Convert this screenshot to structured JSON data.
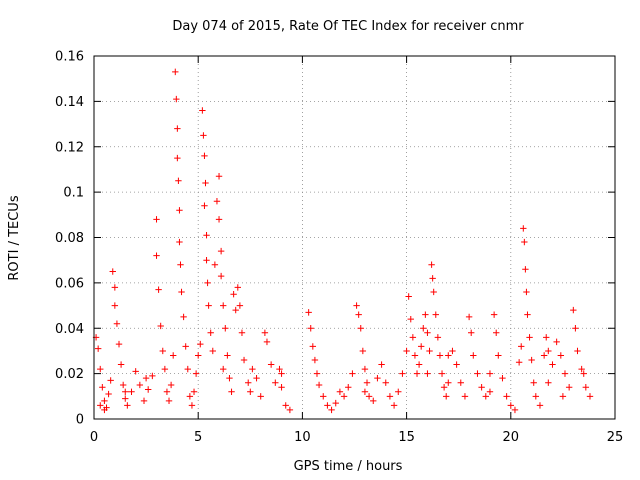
{
  "chart_data": {
    "type": "scatter",
    "title": "Day 074 of 2015, Rate Of TEC Index for receiver cnmr",
    "xlabel": "GPS time / hours",
    "ylabel": "ROTI / TECUs",
    "xlim": [
      0,
      25
    ],
    "ylim": [
      0,
      0.16
    ],
    "x_ticks": [
      0,
      5,
      10,
      15,
      20,
      25
    ],
    "x_tick_labels": [
      "0",
      "5",
      "10",
      "15",
      "20",
      "25"
    ],
    "y_ticks": [
      0,
      0.02,
      0.04,
      0.06,
      0.08,
      0.1,
      0.12,
      0.14,
      0.16
    ],
    "y_tick_labels": [
      "0",
      "0.02",
      "0.04",
      "0.06",
      "0.08",
      "0.1",
      "0.12",
      "0.14",
      "0.16"
    ],
    "grid": true,
    "marker": "+",
    "color": "#ff0000",
    "series": [
      {
        "name": "ROTI",
        "points": [
          [
            0.1,
            0.036
          ],
          [
            0.2,
            0.031
          ],
          [
            0.3,
            0.022
          ],
          [
            0.4,
            0.014
          ],
          [
            0.5,
            0.008
          ],
          [
            0.6,
            0.005
          ],
          [
            0.7,
            0.011
          ],
          [
            0.8,
            0.017
          ],
          [
            0.3,
            0.006
          ],
          [
            0.5,
            0.004
          ],
          [
            0.9,
            0.065
          ],
          [
            1.0,
            0.058
          ],
          [
            1.0,
            0.05
          ],
          [
            1.1,
            0.042
          ],
          [
            1.2,
            0.033
          ],
          [
            1.3,
            0.024
          ],
          [
            1.4,
            0.015
          ],
          [
            1.5,
            0.009
          ],
          [
            1.6,
            0.006
          ],
          [
            1.8,
            0.012
          ],
          [
            2.0,
            0.021
          ],
          [
            2.2,
            0.015
          ],
          [
            2.4,
            0.008
          ],
          [
            2.6,
            0.013
          ],
          [
            2.8,
            0.019
          ],
          [
            3.0,
            0.088
          ],
          [
            3.0,
            0.072
          ],
          [
            3.1,
            0.057
          ],
          [
            3.2,
            0.041
          ],
          [
            3.3,
            0.03
          ],
          [
            3.4,
            0.022
          ],
          [
            3.5,
            0.012
          ],
          [
            3.6,
            0.008
          ],
          [
            3.7,
            0.015
          ],
          [
            3.8,
            0.028
          ],
          [
            3.9,
            0.153
          ],
          [
            3.95,
            0.141
          ],
          [
            4.0,
            0.128
          ],
          [
            4.0,
            0.115
          ],
          [
            4.05,
            0.105
          ],
          [
            4.1,
            0.092
          ],
          [
            4.1,
            0.078
          ],
          [
            4.15,
            0.068
          ],
          [
            4.2,
            0.056
          ],
          [
            4.3,
            0.045
          ],
          [
            4.4,
            0.032
          ],
          [
            4.5,
            0.022
          ],
          [
            4.6,
            0.01
          ],
          [
            4.7,
            0.006
          ],
          [
            4.8,
            0.012
          ],
          [
            4.9,
            0.02
          ],
          [
            5.0,
            0.028
          ],
          [
            5.1,
            0.033
          ],
          [
            5.2,
            0.136
          ],
          [
            5.25,
            0.125
          ],
          [
            5.3,
            0.116
          ],
          [
            5.35,
            0.104
          ],
          [
            5.3,
            0.094
          ],
          [
            5.4,
            0.081
          ],
          [
            5.4,
            0.07
          ],
          [
            5.45,
            0.06
          ],
          [
            5.5,
            0.05
          ],
          [
            5.6,
            0.038
          ],
          [
            5.7,
            0.03
          ],
          [
            5.8,
            0.068
          ],
          [
            5.9,
            0.096
          ],
          [
            6.0,
            0.107
          ],
          [
            6.0,
            0.088
          ],
          [
            6.1,
            0.074
          ],
          [
            6.1,
            0.063
          ],
          [
            6.2,
            0.05
          ],
          [
            6.3,
            0.04
          ],
          [
            6.4,
            0.028
          ],
          [
            6.5,
            0.018
          ],
          [
            6.6,
            0.012
          ],
          [
            6.7,
            0.055
          ],
          [
            6.8,
            0.048
          ],
          [
            6.9,
            0.058
          ],
          [
            7.0,
            0.05
          ],
          [
            7.1,
            0.038
          ],
          [
            7.2,
            0.026
          ],
          [
            7.4,
            0.016
          ],
          [
            7.6,
            0.022
          ],
          [
            7.8,
            0.018
          ],
          [
            8.0,
            0.01
          ],
          [
            8.2,
            0.038
          ],
          [
            8.3,
            0.034
          ],
          [
            8.5,
            0.024
          ],
          [
            8.7,
            0.016
          ],
          [
            8.9,
            0.022
          ],
          [
            9.0,
            0.014
          ],
          [
            9.2,
            0.006
          ],
          [
            9.4,
            0.004
          ],
          [
            10.3,
            0.047
          ],
          [
            10.4,
            0.04
          ],
          [
            10.5,
            0.032
          ],
          [
            10.6,
            0.026
          ],
          [
            10.7,
            0.02
          ],
          [
            10.8,
            0.015
          ],
          [
            11.0,
            0.01
          ],
          [
            11.2,
            0.006
          ],
          [
            11.4,
            0.004
          ],
          [
            11.6,
            0.007
          ],
          [
            11.8,
            0.012
          ],
          [
            12.0,
            0.01
          ],
          [
            12.2,
            0.014
          ],
          [
            12.4,
            0.02
          ],
          [
            12.6,
            0.05
          ],
          [
            12.7,
            0.046
          ],
          [
            12.8,
            0.04
          ],
          [
            12.9,
            0.03
          ],
          [
            13.0,
            0.022
          ],
          [
            13.1,
            0.016
          ],
          [
            13.2,
            0.01
          ],
          [
            13.4,
            0.008
          ],
          [
            13.6,
            0.018
          ],
          [
            13.8,
            0.024
          ],
          [
            14.0,
            0.016
          ],
          [
            14.2,
            0.01
          ],
          [
            14.4,
            0.006
          ],
          [
            14.6,
            0.012
          ],
          [
            14.8,
            0.02
          ],
          [
            15.0,
            0.03
          ],
          [
            15.1,
            0.054
          ],
          [
            15.2,
            0.044
          ],
          [
            15.3,
            0.036
          ],
          [
            15.4,
            0.028
          ],
          [
            15.5,
            0.02
          ],
          [
            15.6,
            0.024
          ],
          [
            15.7,
            0.032
          ],
          [
            15.8,
            0.04
          ],
          [
            15.9,
            0.046
          ],
          [
            16.0,
            0.038
          ],
          [
            16.1,
            0.03
          ],
          [
            16.2,
            0.068
          ],
          [
            16.25,
            0.062
          ],
          [
            16.3,
            0.056
          ],
          [
            16.4,
            0.046
          ],
          [
            16.5,
            0.036
          ],
          [
            16.6,
            0.028
          ],
          [
            16.7,
            0.02
          ],
          [
            16.8,
            0.014
          ],
          [
            16.9,
            0.01
          ],
          [
            17.0,
            0.016
          ],
          [
            17.2,
            0.03
          ],
          [
            17.4,
            0.024
          ],
          [
            17.6,
            0.016
          ],
          [
            17.8,
            0.01
          ],
          [
            18.0,
            0.045
          ],
          [
            18.1,
            0.038
          ],
          [
            18.2,
            0.028
          ],
          [
            18.4,
            0.02
          ],
          [
            18.6,
            0.014
          ],
          [
            18.8,
            0.01
          ],
          [
            19.0,
            0.02
          ],
          [
            19.2,
            0.046
          ],
          [
            19.3,
            0.038
          ],
          [
            19.4,
            0.028
          ],
          [
            19.6,
            0.018
          ],
          [
            19.8,
            0.01
          ],
          [
            20.0,
            0.006
          ],
          [
            20.2,
            0.004
          ],
          [
            20.4,
            0.025
          ],
          [
            20.5,
            0.032
          ],
          [
            20.6,
            0.084
          ],
          [
            20.65,
            0.078
          ],
          [
            20.7,
            0.066
          ],
          [
            20.75,
            0.056
          ],
          [
            20.8,
            0.046
          ],
          [
            20.9,
            0.036
          ],
          [
            21.0,
            0.026
          ],
          [
            21.1,
            0.016
          ],
          [
            21.2,
            0.01
          ],
          [
            21.4,
            0.006
          ],
          [
            21.6,
            0.028
          ],
          [
            21.7,
            0.036
          ],
          [
            21.8,
            0.03
          ],
          [
            22.0,
            0.024
          ],
          [
            22.2,
            0.034
          ],
          [
            22.4,
            0.028
          ],
          [
            22.6,
            0.02
          ],
          [
            22.8,
            0.014
          ],
          [
            23.0,
            0.048
          ],
          [
            23.1,
            0.04
          ],
          [
            23.2,
            0.03
          ],
          [
            23.4,
            0.022
          ],
          [
            23.6,
            0.014
          ],
          [
            23.8,
            0.01
          ],
          [
            1.5,
            0.012
          ],
          [
            2.5,
            0.018
          ],
          [
            6.2,
            0.022
          ],
          [
            7.5,
            0.012
          ],
          [
            9.0,
            0.02
          ],
          [
            13.0,
            0.012
          ],
          [
            16.0,
            0.02
          ],
          [
            17.0,
            0.028
          ],
          [
            19.0,
            0.012
          ],
          [
            21.8,
            0.016
          ],
          [
            22.5,
            0.01
          ],
          [
            23.5,
            0.02
          ]
        ]
      }
    ]
  }
}
